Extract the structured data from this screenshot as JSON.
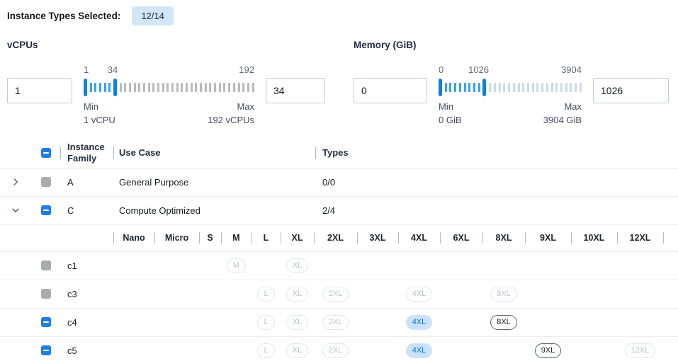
{
  "header": {
    "label": "Instance Types Selected:",
    "badge": "12/14"
  },
  "filters": [
    {
      "title": "vCPUs",
      "min_input": "1",
      "max_input": "34",
      "scale_labels": {
        "start": "1",
        "mid": "34",
        "end": "192"
      },
      "min_label": "Min",
      "min_value": "1 vCPU",
      "max_label": "Max",
      "max_value": "192 vCPUs",
      "slider": {
        "total_ticks": 36,
        "low_index": 0,
        "high_index": 6,
        "mid_label_pct": 17,
        "unselected_color": "#b7bbbf"
      }
    },
    {
      "title": "Memory (GiB)",
      "min_input": "0",
      "max_input": "1026",
      "scale_labels": {
        "start": "0",
        "mid": "1026",
        "end": "3904"
      },
      "min_label": "Min",
      "min_value": "0 GiB",
      "max_label": "Max",
      "max_value": "3904 GiB",
      "slider": {
        "total_ticks": 30,
        "low_index": 0,
        "high_index": 9,
        "mid_label_pct": 28,
        "unselected_color": "#ccd9e9"
      }
    }
  ],
  "table": {
    "columns": [
      {
        "label": "Instance Family"
      },
      {
        "label": "Use Case"
      },
      {
        "label": "Types"
      }
    ],
    "family_rows": [
      {
        "family": "A",
        "use_case": "General Purpose",
        "types": "0/0",
        "checkbox": "disabled",
        "expanded": false
      },
      {
        "family": "C",
        "use_case": "Compute Optimized",
        "types": "2/4",
        "checkbox": "indeterminate",
        "expanded": true
      }
    ],
    "sizes": [
      "Nano",
      "Micro",
      "S",
      "M",
      "L",
      "XL",
      "2XL",
      "3XL",
      "4XL",
      "6XL",
      "8XL",
      "9XL",
      "10XL",
      "12XL"
    ],
    "size_rows": [
      {
        "name": "c1",
        "checkbox": "disabled",
        "pills": {
          "M": "disabled",
          "XL": "disabled"
        }
      },
      {
        "name": "c3",
        "checkbox": "disabled",
        "pills": {
          "L": "disabled",
          "XL": "disabled",
          "2XL": "disabled",
          "4XL": "disabled",
          "8XL": "disabled"
        }
      },
      {
        "name": "c4",
        "checkbox": "indeterminate",
        "pills": {
          "L": "disabled",
          "XL": "disabled",
          "2XL": "disabled",
          "4XL": "selected",
          "8XL": "enabled"
        }
      },
      {
        "name": "c5",
        "checkbox": "indeterminate",
        "pills": {
          "L": "disabled",
          "XL": "disabled",
          "2XL": "disabled",
          "4XL": "selected",
          "9XL": "enabled",
          "12XL": "disabled"
        }
      }
    ]
  },
  "colors": {
    "accent_blue": "#0d80e2",
    "selected_tick": "#36a2e9",
    "badge_bg": "#d2e6fa",
    "pill_selected_bg": "#cbe3fa",
    "pill_selected_text": "#0b74d9",
    "checkbox_blue": "#1f7ee4",
    "checkbox_gray": "#a9abae"
  }
}
